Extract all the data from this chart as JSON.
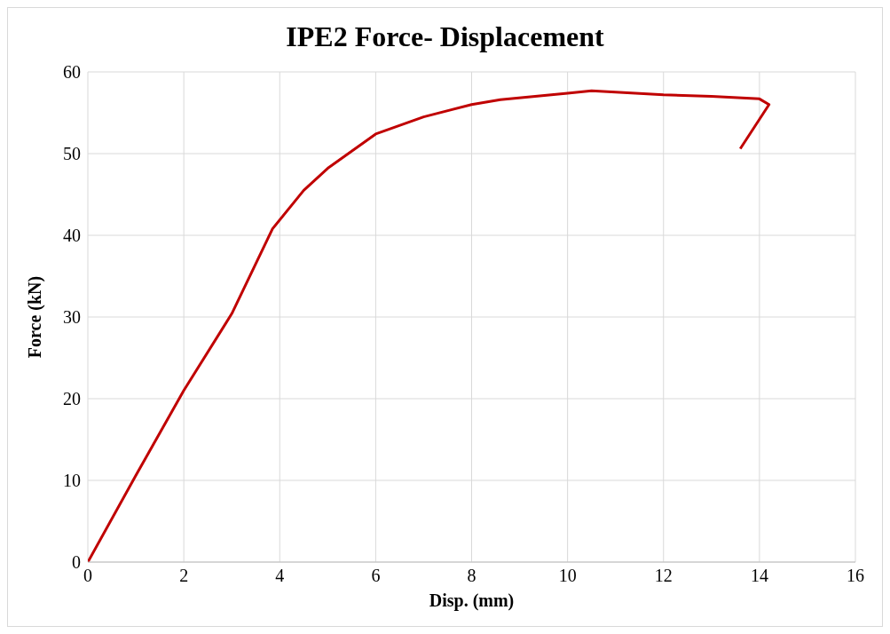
{
  "chart_data": {
    "type": "line",
    "title": "IPE2 Force- Displacement",
    "xlabel": "Disp. (mm)",
    "ylabel": "Force (kN)",
    "x": [
      0,
      1,
      2,
      3,
      3.85,
      4.5,
      5,
      6,
      7,
      8,
      8.6,
      10,
      10.5,
      12,
      13,
      14,
      14.2,
      13.6
    ],
    "series": [
      {
        "color": "#c00000",
        "values": [
          0,
          10.6,
          21,
          30.4,
          40.8,
          45.5,
          48.2,
          52.4,
          54.5,
          56,
          56.6,
          57.4,
          57.7,
          57.2,
          57,
          56.7,
          56,
          50.6
        ]
      }
    ],
    "xlim": [
      0,
      16
    ],
    "xticks": [
      0,
      2,
      4,
      6,
      8,
      10,
      12,
      14,
      16
    ],
    "ylim": [
      0,
      60
    ],
    "yticks": [
      0,
      10,
      20,
      30,
      40,
      50,
      60
    ],
    "grid": true,
    "legend": false,
    "marker": "none",
    "line_style": "solid"
  }
}
